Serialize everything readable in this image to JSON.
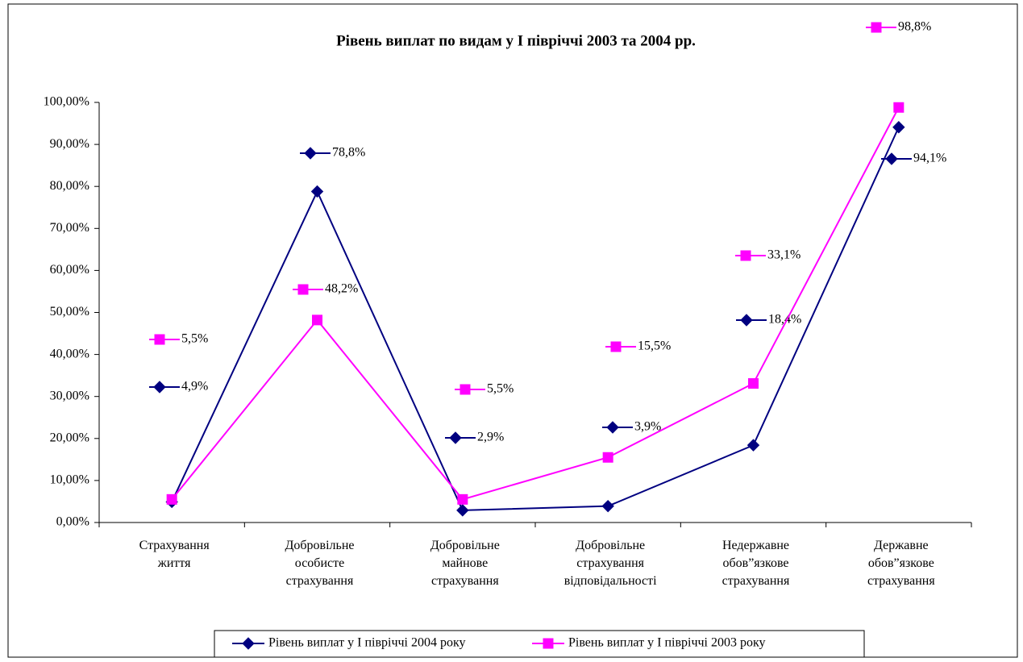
{
  "chart_data": {
    "type": "line",
    "title": "Рівень виплат по видам у І півріччі 2003 та 2004 рр.",
    "categories": [
      "Страхування життя",
      "Добровільне особисте страхування",
      "Добровільне майнове страхування",
      "Добровільне страхування відповідальності",
      "Недержавне обов”язкове страхування",
      "Державне обов”язкове страхування"
    ],
    "series": [
      {
        "name": "Рівень виплат у І півріччі 2004 року",
        "color": "#000080",
        "marker": "diamond",
        "values": [
          4.9,
          78.8,
          2.9,
          3.9,
          18.4,
          94.1
        ],
        "value_labels": [
          "4,9%",
          "78,8%",
          "2,9%",
          "3,9%",
          "18,4%",
          "94,1%"
        ]
      },
      {
        "name": "Рівень виплат у І півріччі 2003 року",
        "color": "#ff00ff",
        "marker": "square",
        "values": [
          5.5,
          48.2,
          5.5,
          15.5,
          33.1,
          98.8
        ],
        "value_labels": [
          "5,5%",
          "48,2%",
          "5,5%",
          "15,5%",
          "33,1%",
          "98,8%"
        ]
      }
    ],
    "ylim": [
      0,
      100
    ],
    "yticks": [
      {
        "value": 0,
        "label": "0,00%"
      },
      {
        "value": 10,
        "label": "10,00%"
      },
      {
        "value": 20,
        "label": "20,00%"
      },
      {
        "value": 30,
        "label": "30,00%"
      },
      {
        "value": 40,
        "label": "40,00%"
      },
      {
        "value": 50,
        "label": "50,00%"
      },
      {
        "value": 60,
        "label": "60,00%"
      },
      {
        "value": 70,
        "label": "70,00%"
      },
      {
        "value": 80,
        "label": "80,00%"
      },
      {
        "value": 90,
        "label": "90,00%"
      },
      {
        "value": 100,
        "label": "100,00%"
      }
    ],
    "legend": "bottom"
  }
}
